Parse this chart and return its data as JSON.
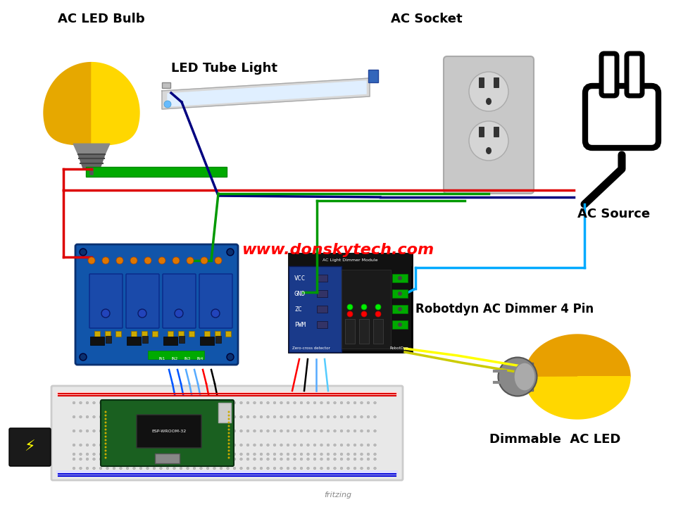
{
  "background_color": "#ffffff",
  "labels": {
    "ac_led_bulb": "AC LED Bulb",
    "led_tube_light": "LED Tube Light",
    "ac_socket": "AC Socket",
    "ac_source": "AC Source",
    "robotdyn": "Robotdyn AC Dimmer 4 Pin",
    "dimmable": "Dimmable  AC LED",
    "website": "www.donskytech.com",
    "fritzing": "fritzing"
  },
  "colors": {
    "bulb_dark": "#E6A800",
    "bulb_bright": "#FFD700",
    "bulb_base_dark": "#555555",
    "bulb_base_mid": "#777777",
    "bulb_base_light": "#aaaaaa",
    "relay_blue": "#1155aa",
    "relay_dark": "#0a3070",
    "relay_block": "#1a4aaa",
    "orange_dot": "#ee8800",
    "green_strip": "#00aa00",
    "dimmer_bg": "#111111",
    "dimmer_side": "#1a3a8a",
    "breadboard_bg": "#e8e8e8",
    "breadboard_stripe": "#d0d0d0",
    "esp32_green": "#1a6020",
    "socket_plate": "#cccccc",
    "socket_outlet": "#bbbbbb",
    "wire_red": "#dd0000",
    "wire_darkblue": "#000080",
    "wire_green": "#009900",
    "wire_cyan": "#00aaff",
    "wire_yellow": "#ffff00",
    "wire_black": "#000000",
    "wire_lightblue": "#55aaff",
    "dimmable_orange": "#E8A000",
    "dimmable_yellow": "#FFD700"
  }
}
